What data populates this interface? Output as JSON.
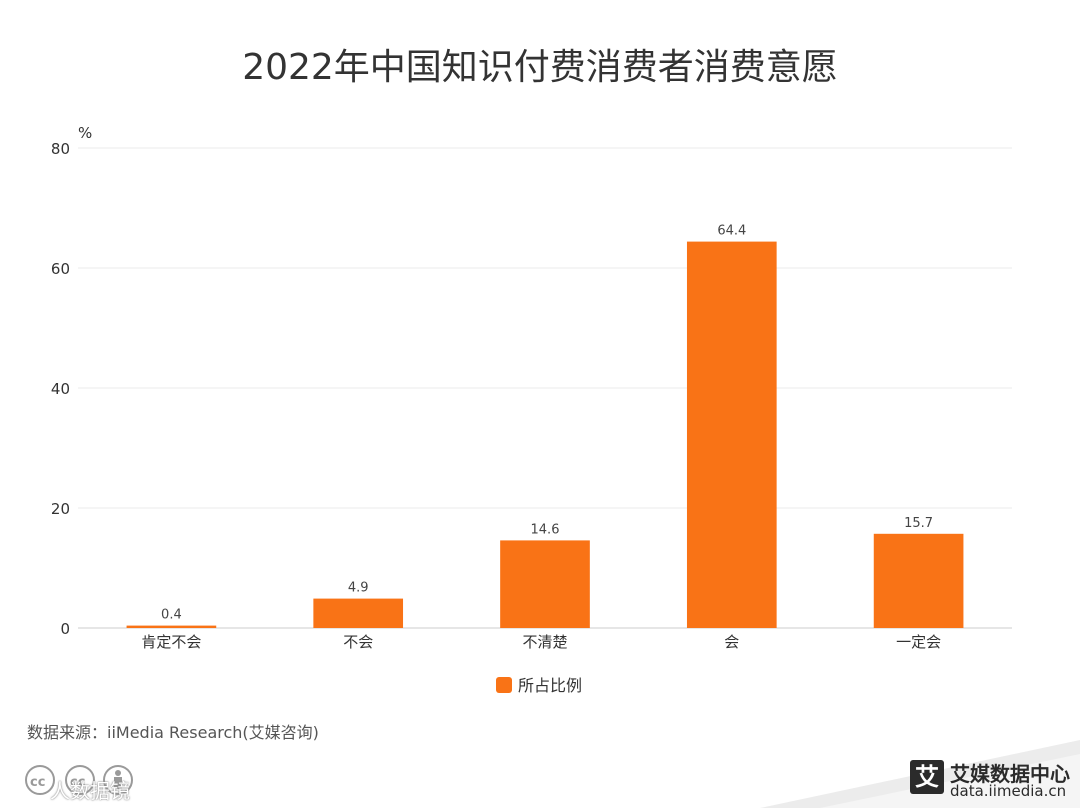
{
  "title": "2022年中国知识付费消费者消费意愿",
  "source": "数据来源：iiMedia Research(艾媒咨询)",
  "watermark": {
    "text": "人数据镜"
  },
  "brand": {
    "logo_char": "艾",
    "name": "艾媒数据中心",
    "url": "data.iimedia.cn"
  },
  "colors": {
    "bar": "#F97316",
    "grid": "#EBEBEB",
    "axis": "#CCCCCC"
  },
  "chart_data": {
    "type": "bar",
    "title": "2022年中国知识付费消费者消费意愿",
    "ylabel": "%",
    "xlabel": "",
    "ylim": [
      0,
      80
    ],
    "yticks": [
      0,
      20,
      40,
      60,
      80
    ],
    "categories": [
      "肯定不会",
      "不会",
      "不清楚",
      "会",
      "一定会"
    ],
    "series": [
      {
        "name": "所占比例",
        "values": [
          0.4,
          4.9,
          14.6,
          64.4,
          15.7
        ]
      }
    ],
    "legend": "bottom-center",
    "grid": true
  }
}
